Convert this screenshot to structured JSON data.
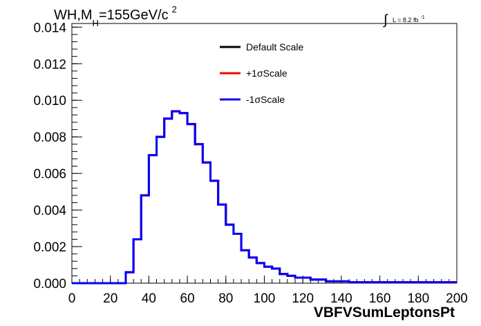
{
  "chart_data": {
    "type": "line",
    "title": "WH,M",
    "title_subscript": "H",
    "title_rest": "=155GeV/c",
    "title_superscript": "2",
    "luminosity_symbol": "∫",
    "luminosity_label": "L = 8.2 fb",
    "luminosity_superscript": "-1",
    "xlabel": "VBFVSumLeptonsPt",
    "ylabel": "",
    "xlim": [
      0,
      200
    ],
    "ylim": [
      0,
      0.0142
    ],
    "x_ticks": [
      0,
      20,
      40,
      60,
      80,
      100,
      120,
      140,
      160,
      180,
      200
    ],
    "x_tick_labels": [
      "0",
      "20",
      "40",
      "60",
      "80",
      "100",
      "120",
      "140",
      "160",
      "180",
      "200"
    ],
    "y_ticks": [
      0,
      0.002,
      0.004,
      0.006,
      0.008,
      0.01,
      0.012,
      0.014
    ],
    "y_tick_labels": [
      "0.000",
      "0.002",
      "0.004",
      "0.006",
      "0.008",
      "0.010",
      "0.012",
      "0.014"
    ],
    "grid": false,
    "legend_position": "top-center",
    "bin_width": 4,
    "bin_edges_start": 0,
    "series": [
      {
        "name": "Default Scale",
        "color": "#000000",
        "values": [
          0,
          0,
          0,
          0,
          0,
          0,
          0,
          0.0006,
          0.0024,
          0.0048,
          0.007,
          0.008,
          0.009,
          0.0094,
          0.0093,
          0.0087,
          0.0076,
          0.0066,
          0.0056,
          0.0043,
          0.0032,
          0.0027,
          0.0018,
          0.0014,
          0.0011,
          0.0009,
          0.0008,
          0.0005,
          0.0004,
          0.0003,
          0.0003,
          0.0002,
          0.0002,
          0.0001,
          0.0001,
          0.0001,
          5e-05,
          5e-05,
          5e-05,
          5e-05,
          5e-05,
          5e-05,
          5e-05,
          5e-05,
          5e-05,
          5e-05,
          5e-05,
          5e-05,
          5e-05,
          5e-05
        ]
      },
      {
        "name": "+1σScale",
        "color": "#ff0000",
        "values": [
          0,
          0,
          0,
          0,
          0,
          0,
          0,
          0.0006,
          0.0024,
          0.0048,
          0.007,
          0.008,
          0.009,
          0.0094,
          0.0093,
          0.0087,
          0.0076,
          0.0066,
          0.0056,
          0.0043,
          0.0032,
          0.0027,
          0.0018,
          0.0014,
          0.0011,
          0.0009,
          0.0008,
          0.0005,
          0.0004,
          0.0003,
          0.0003,
          0.0002,
          0.0002,
          0.0001,
          0.0001,
          0.0001,
          5e-05,
          5e-05,
          5e-05,
          5e-05,
          5e-05,
          5e-05,
          5e-05,
          5e-05,
          5e-05,
          5e-05,
          5e-05,
          5e-05,
          5e-05,
          5e-05
        ]
      },
      {
        "name": "-1σScale",
        "color": "#0000ff",
        "values": [
          0,
          0,
          0,
          0,
          0,
          0,
          0,
          0.0006,
          0.0024,
          0.0048,
          0.007,
          0.008,
          0.009,
          0.0094,
          0.0093,
          0.0087,
          0.0076,
          0.0066,
          0.0056,
          0.0043,
          0.0032,
          0.0027,
          0.0018,
          0.0014,
          0.0011,
          0.0009,
          0.0008,
          0.0005,
          0.0004,
          0.0003,
          0.0003,
          0.0002,
          0.0002,
          0.0001,
          0.0001,
          0.0001,
          5e-05,
          5e-05,
          5e-05,
          5e-05,
          5e-05,
          5e-05,
          5e-05,
          5e-05,
          5e-05,
          5e-05,
          5e-05,
          5e-05,
          5e-05,
          5e-05
        ]
      }
    ]
  }
}
